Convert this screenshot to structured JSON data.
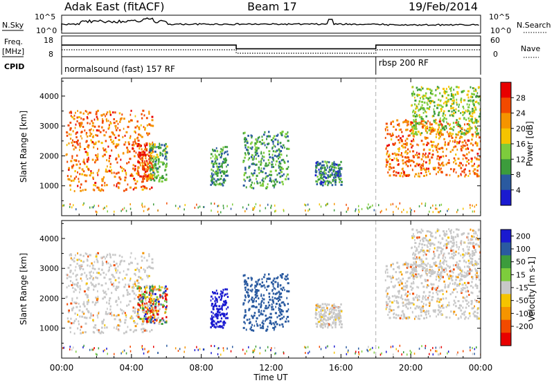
{
  "header": {
    "radar": "Adak East (fitACF)",
    "beam": "Beam 17",
    "date": "19/Feb/2014"
  },
  "panels": {
    "nsky": {
      "left_label": "N.Sky",
      "right_label": "N.Search",
      "ticks": [
        "10^5",
        "10^0"
      ]
    },
    "freq": {
      "left_label_1": "Freq.",
      "left_label_2": "[MHz]",
      "right_label": "Nave",
      "left_ticks": [
        "18",
        "8"
      ],
      "right_ticks": [
        "60",
        "0"
      ]
    },
    "cpid": {
      "label": "CPID",
      "modes": [
        {
          "name": "normalsound (fast) 157 RF",
          "start_hour": 0,
          "end_hour": 18
        },
        {
          "name": "rbsp 200 RF",
          "start_hour": 18,
          "end_hour": 24
        }
      ]
    }
  },
  "power_panel": {
    "ylabel": "Slant Range [km]",
    "colorbar_label": "Power [dB]",
    "colorbar_ticks": [
      "28",
      "24",
      "20",
      "16",
      "12",
      "8",
      "4"
    ],
    "colors": [
      "#e80000",
      "#f24a00",
      "#f59400",
      "#f5c400",
      "#7dcc3c",
      "#3c9c3c",
      "#2a5aa0",
      "#1a1ad0"
    ]
  },
  "velocity_panel": {
    "ylabel": "Slant Range [km]",
    "colorbar_label": "Velocity [m s-1]",
    "colorbar_ticks": [
      "200",
      "100",
      "50",
      "15",
      "-15",
      "-50",
      "-100",
      "-200"
    ],
    "colors": [
      "#1a1ad0",
      "#2a5aa0",
      "#3c9c3c",
      "#7dcc3c",
      "#c8c8c8",
      "#f5c400",
      "#f59400",
      "#f24a00",
      "#e80000"
    ],
    "ground_scatter_color": "#c8c8c8"
  },
  "xaxis": {
    "label": "Time UT",
    "ticks": [
      "00:00",
      "04:00",
      "08:00",
      "12:00",
      "16:00",
      "20:00",
      "00:00"
    ]
  },
  "chart_data": {
    "type": "heatmap",
    "title": "Adak East (fitACF) Beam 17 19/Feb/2014",
    "xlabel": "Time UT",
    "ylabel": "Slant Range [km]",
    "xlim_hours": [
      0,
      24
    ],
    "ylim_km": [
      0,
      4600
    ],
    "yticks_km": [
      1000,
      2000,
      3000,
      4000
    ],
    "power_colorbar_db": [
      4,
      8,
      12,
      16,
      20,
      24,
      28
    ],
    "velocity_colorbar_ms": [
      -200,
      -100,
      -50,
      -15,
      15,
      50,
      100,
      200
    ],
    "mode_change_hour": 18,
    "frequency_mhz": [
      {
        "start_hour": 0,
        "end_hour": 10,
        "value": 14
      },
      {
        "start_hour": 10,
        "end_hour": 18,
        "value": 11
      },
      {
        "start_hour": 18,
        "end_hour": 24,
        "value": 14
      }
    ],
    "scatter_regions": [
      {
        "name": "near-range scatter",
        "start_hour": 0.2,
        "end_hour": 5.2,
        "min_km": 800,
        "max_km": 3500,
        "power_db": 22,
        "velocity": "ground"
      },
      {
        "name": "curved echo at 04:00-05:00",
        "start_hour": 4.3,
        "end_hour": 5.2,
        "min_km": 1200,
        "max_km": 2400,
        "power_db": 24,
        "velocity": "mixed"
      },
      {
        "name": "echo 05:00-06:00",
        "start_hour": 5.0,
        "end_hour": 6.0,
        "min_km": 1100,
        "max_km": 2400,
        "power_db": 10,
        "velocity": "mixed"
      },
      {
        "name": "echo 08:30-09:30",
        "start_hour": 8.5,
        "end_hour": 9.5,
        "min_km": 1000,
        "max_km": 2300,
        "power_db": 8,
        "velocity": 150
      },
      {
        "name": "echo 10:30-13:00",
        "start_hour": 10.3,
        "end_hour": 13.0,
        "min_km": 900,
        "max_km": 2800,
        "power_db": 8,
        "velocity": 100
      },
      {
        "name": "echo 14:30-16:00",
        "start_hour": 14.5,
        "end_hour": 16.0,
        "min_km": 1000,
        "max_km": 1800,
        "power_db": 6,
        "velocity": "ground"
      },
      {
        "name": "ground scatter 18:30-24:00",
        "start_hour": 18.5,
        "end_hour": 24.0,
        "min_km": 1300,
        "max_km": 3200,
        "power_db": 22,
        "velocity": "ground"
      },
      {
        "name": "far band 20:00-24:00",
        "start_hour": 20.0,
        "end_hour": 24.0,
        "min_km": 2700,
        "max_km": 4300,
        "power_db": 12,
        "velocity": "ground"
      }
    ]
  }
}
